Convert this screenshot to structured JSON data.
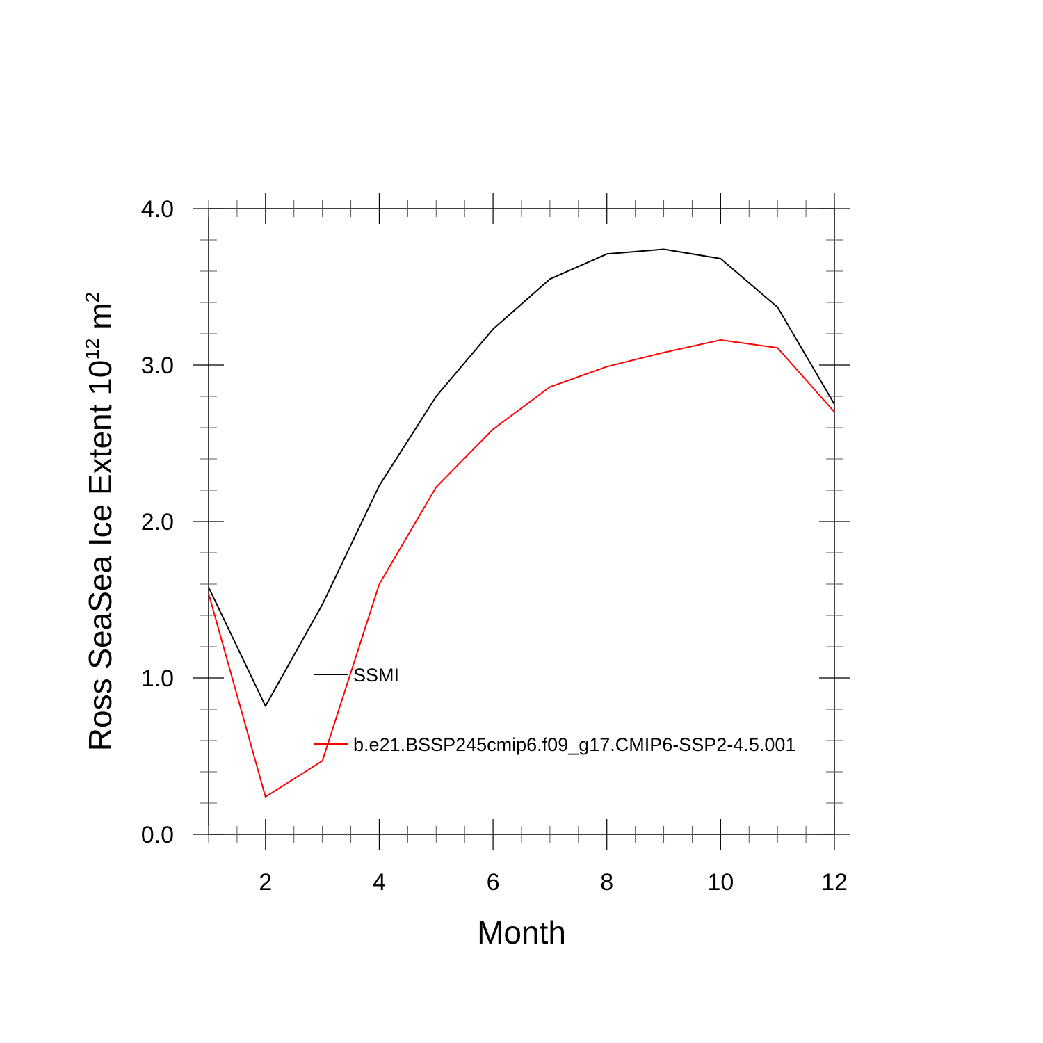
{
  "chart_data": {
    "type": "line",
    "x": [
      1,
      2,
      3,
      4,
      5,
      6,
      7,
      8,
      9,
      10,
      11,
      12
    ],
    "series": [
      {
        "name": "SSMI",
        "color": "#000000",
        "values": [
          1.58,
          0.82,
          1.47,
          2.23,
          2.8,
          3.23,
          3.55,
          3.71,
          3.74,
          3.68,
          3.37,
          2.75
        ]
      },
      {
        "name": "b.e21.BSSP245cmip6.f09_g17.CMIP6-SSP2-4.5.001",
        "color": "#ff0000",
        "values": [
          1.54,
          0.24,
          0.47,
          1.6,
          2.22,
          2.59,
          2.86,
          2.99,
          3.08,
          3.16,
          3.11,
          2.7
        ]
      }
    ],
    "xlabel": "Month",
    "ylabel": {
      "text": "Ross SeaSea Ice Extent 10",
      "superscript": "12",
      "unit": " m",
      "unit_superscript": "2"
    },
    "xlim": [
      1,
      12
    ],
    "ylim": [
      0,
      4
    ],
    "x_ticks": [
      2,
      4,
      6,
      8,
      10,
      12
    ],
    "x_minor_step": 0.5,
    "y_ticks": [
      {
        "value": 0,
        "label": "0.0"
      },
      {
        "value": 1,
        "label": "1.0"
      },
      {
        "value": 2,
        "label": "2.0"
      },
      {
        "value": 3,
        "label": "3.0"
      },
      {
        "value": 4,
        "label": "4.0"
      }
    ],
    "y_minor_step": 0.2,
    "grid": false,
    "legend": "inside-lower-left"
  }
}
